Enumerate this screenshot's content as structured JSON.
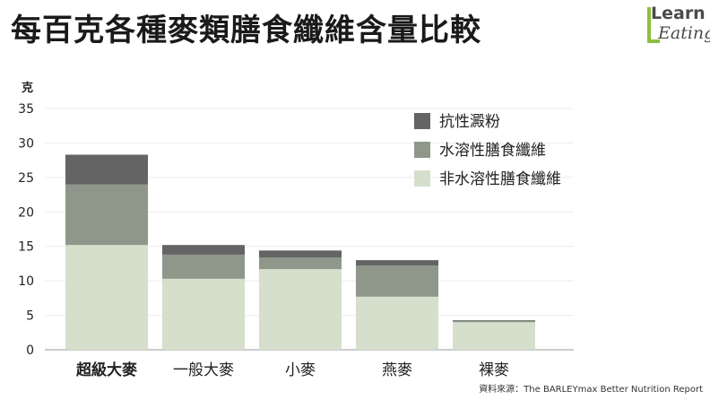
{
  "title": "每百克各種麥類膳食纖維含量比較",
  "logo": {
    "learn": "Learn",
    "eating": "Eating"
  },
  "source": "資料來源：The BARLEYmax Better Nutrition Report",
  "chart_data": {
    "type": "bar",
    "stacked": true,
    "ylabel": "克",
    "ylim": [
      0,
      35
    ],
    "yticks": [
      0,
      5,
      10,
      15,
      20,
      25,
      30,
      35
    ],
    "grid": true,
    "legend_position": "top-right",
    "categories": [
      "超級大麥",
      "一般大麥",
      "小麥",
      "燕麥",
      "裸麥"
    ],
    "bold_categories": [
      "超級大麥"
    ],
    "series": [
      {
        "name": "非水溶性膳食纖維",
        "color": "#d5dfcc",
        "values": [
          15.2,
          10.3,
          11.7,
          7.7,
          4.0
        ]
      },
      {
        "name": "水溶性膳食纖維",
        "color": "#8e978a",
        "values": [
          8.8,
          3.5,
          1.7,
          4.5,
          0.2
        ]
      },
      {
        "name": "抗性澱粉",
        "color": "#646464",
        "values": [
          4.3,
          1.4,
          1.0,
          0.8,
          0.1
        ]
      }
    ]
  }
}
